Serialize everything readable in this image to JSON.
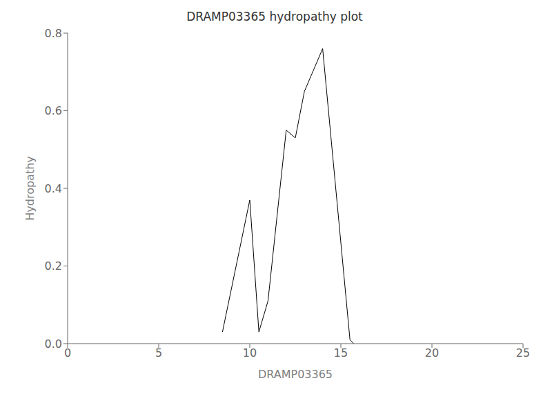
{
  "chart_data": {
    "type": "line",
    "title": "DRAMP03365 hydropathy plot",
    "xlabel": "DRAMP03365",
    "ylabel": "Hydropathy",
    "x": [
      8.5,
      10.0,
      10.5,
      11.0,
      12.0,
      12.5,
      13.0,
      14.0,
      15.5,
      15.7
    ],
    "values": [
      0.03,
      0.37,
      0.03,
      0.11,
      0.55,
      0.53,
      0.65,
      0.76,
      0.01,
      0.0
    ],
    "color": "#000000",
    "xlim": [
      0,
      25
    ],
    "ylim": [
      0.0,
      0.8
    ],
    "xticks": [
      0,
      5,
      10,
      15,
      20,
      25
    ],
    "yticks": [
      {
        "value": 0.0,
        "label": "0.0"
      },
      0.2,
      0.4,
      0.6,
      0.8
    ],
    "grid": false
  }
}
